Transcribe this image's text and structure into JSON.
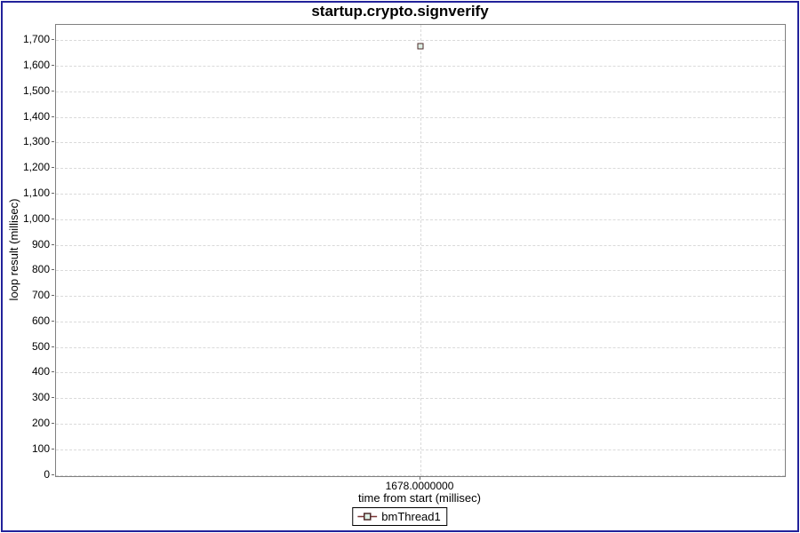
{
  "chart_data": {
    "type": "scatter",
    "title": "startup.crypto.signverify",
    "xlabel": "time from start (millisec)",
    "ylabel": "loop result (millisec)",
    "xlim": [
      1677.5,
      1678.5
    ],
    "ylim": [
      -5,
      1760
    ],
    "grid": "dashed",
    "legend_position": "bottom",
    "x_ticks": [
      {
        "value": 1678,
        "label": "1678.0000000"
      }
    ],
    "y_ticks": [
      {
        "value": 0,
        "label": "0"
      },
      {
        "value": 100,
        "label": "100"
      },
      {
        "value": 200,
        "label": "200"
      },
      {
        "value": 300,
        "label": "300"
      },
      {
        "value": 400,
        "label": "400"
      },
      {
        "value": 500,
        "label": "500"
      },
      {
        "value": 600,
        "label": "600"
      },
      {
        "value": 700,
        "label": "700"
      },
      {
        "value": 800,
        "label": "800"
      },
      {
        "value": 900,
        "label": "900"
      },
      {
        "value": 1000,
        "label": "1,000"
      },
      {
        "value": 1100,
        "label": "1,100"
      },
      {
        "value": 1200,
        "label": "1,200"
      },
      {
        "value": 1300,
        "label": "1,300"
      },
      {
        "value": 1400,
        "label": "1,400"
      },
      {
        "value": 1500,
        "label": "1,500"
      },
      {
        "value": 1600,
        "label": "1,600"
      },
      {
        "value": 1700,
        "label": "1,700"
      }
    ],
    "series": [
      {
        "name": "bmThread1",
        "marker": "square",
        "marker_fill": "#def0e6",
        "marker_stroke": "#4d2a2a",
        "line_color": "#7b3434",
        "points": [
          [
            1678,
            1676
          ]
        ]
      }
    ],
    "colors": {
      "frame_border": "#22229a",
      "plot_border": "#808080",
      "gridline": "#dadada",
      "background": "#ffffff",
      "text": "#000000"
    }
  }
}
